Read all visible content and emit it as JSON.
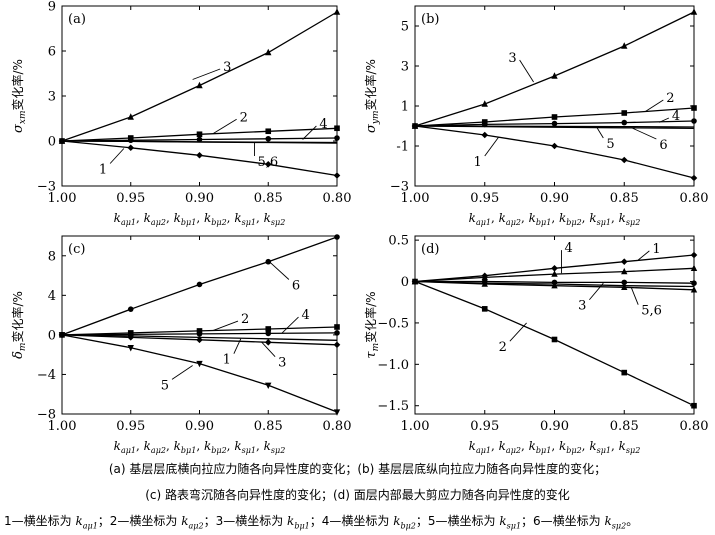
{
  "captions": {
    "line1": "(a) 基层层底横向拉应力随各向异性度的变化；(b) 基层层底纵向拉应力随各向异性度的变化；",
    "line2": "(c) 路表弯沉随各向异性度的变化；(d) 面层内部最大剪应力随各向异性度的变化",
    "legend_prefix": [
      "1—横坐标为 ",
      "；2—横坐标为 ",
      "；3—横坐标为 ",
      "；4—横坐标为 ",
      "；5—横坐标为 ",
      "；6—横坐标为 "
    ],
    "legend_vars": [
      {
        "k": "k",
        "sub": "aμ1"
      },
      {
        "k": "k",
        "sub": "aμ2"
      },
      {
        "k": "k",
        "sub": "bμ1"
      },
      {
        "k": "k",
        "sub": "bμ2"
      },
      {
        "k": "k",
        "sub": "sμ1"
      },
      {
        "k": "k",
        "sub": "sμ2"
      }
    ],
    "legend_end": "。"
  },
  "chart_data": [
    {
      "panel": "(a)",
      "type": "line",
      "ylabel": {
        "base": "σ",
        "sub": "xm",
        "rest": "变化率/%"
      },
      "xlabel": "kaμ1, kaμ2, kbμ1, kbμ2, ksμ1, ksμ2",
      "x": [
        1.0,
        0.95,
        0.9,
        0.85,
        0.8
      ],
      "xticks": [
        "1.00",
        "0.95",
        "0.90",
        "0.85",
        "0.80"
      ],
      "ylim": [
        -3,
        9
      ],
      "yticks": [
        {
          "v": 9,
          "t": "9"
        },
        {
          "v": 6,
          "t": "6"
        },
        {
          "v": 3,
          "t": "3"
        },
        {
          "v": 0,
          "t": "0"
        },
        {
          "v": -3,
          "t": "−3"
        }
      ],
      "series": [
        {
          "label": "3",
          "marker": "triangle",
          "values": [
            0,
            1.6,
            3.7,
            5.9,
            8.6
          ]
        },
        {
          "label": "2",
          "marker": "square",
          "values": [
            0,
            0.2,
            0.45,
            0.65,
            0.85
          ]
        },
        {
          "label": "4",
          "marker": "circle",
          "values": [
            0,
            0.05,
            0.1,
            0.15,
            0.2
          ]
        },
        {
          "label": "5",
          "marker": "none",
          "values": [
            0,
            -0.02,
            -0.05,
            -0.08,
            -0.1
          ]
        },
        {
          "label": "6",
          "marker": "none",
          "values": [
            0,
            -0.03,
            -0.07,
            -0.1,
            -0.14
          ]
        },
        {
          "label": "1",
          "marker": "diamond",
          "values": [
            0,
            -0.45,
            -0.95,
            -1.55,
            -2.3
          ]
        }
      ],
      "labels": [
        {
          "text": "3",
          "ax": 0.905,
          "ay": 4.1,
          "tx": 0.885,
          "ty": 4.8
        },
        {
          "text": "2",
          "ax": 0.89,
          "ay": 0.5,
          "tx": 0.873,
          "ty": 1.45
        },
        {
          "text": "4",
          "ax": 0.825,
          "ay": 0.1,
          "tx": 0.815,
          "ty": 1.0
        },
        {
          "text": "5,6",
          "ax": 0.86,
          "ay": -0.1,
          "tx": 0.86,
          "ty": -1.0
        },
        {
          "text": "1",
          "ax": 0.955,
          "ay": -0.5,
          "tx": 0.965,
          "ty": -1.5
        }
      ]
    },
    {
      "panel": "(b)",
      "type": "line",
      "ylabel": {
        "base": "σ",
        "sub": "ym",
        "rest": "变化率/%"
      },
      "xlabel": "kaμ1, kaμ2, kbμ1, kbμ2, ksμ1, ksμ2",
      "x": [
        1.0,
        0.95,
        0.9,
        0.85,
        0.8
      ],
      "xticks": [
        "1.00",
        "0.95",
        "0.90",
        "0.85",
        "0.80"
      ],
      "ylim": [
        -3,
        6
      ],
      "yticks": [
        {
          "v": 5,
          "t": "5"
        },
        {
          "v": 3,
          "t": "3"
        },
        {
          "v": 1,
          "t": "1"
        },
        {
          "v": -1,
          "t": "-1"
        },
        {
          "v": -3,
          "t": "−3"
        }
      ],
      "series": [
        {
          "label": "3",
          "marker": "triangle",
          "values": [
            0,
            1.1,
            2.5,
            4.0,
            5.7
          ]
        },
        {
          "label": "2",
          "marker": "square",
          "values": [
            0,
            0.2,
            0.45,
            0.65,
            0.9
          ]
        },
        {
          "label": "4",
          "marker": "circle",
          "values": [
            0,
            0.08,
            0.12,
            0.17,
            0.25
          ]
        },
        {
          "label": "5",
          "marker": "none",
          "values": [
            0,
            -0.01,
            -0.02,
            -0.03,
            -0.05
          ]
        },
        {
          "label": "6",
          "marker": "none",
          "values": [
            0,
            -0.03,
            -0.06,
            -0.09,
            -0.12
          ]
        },
        {
          "label": "1",
          "marker": "diamond",
          "values": [
            0,
            -0.45,
            -1.0,
            -1.7,
            -2.6
          ]
        }
      ],
      "labels": [
        {
          "text": "3",
          "ax": 0.915,
          "ay": 2.2,
          "tx": 0.925,
          "ty": 3.3
        },
        {
          "text": "2",
          "ax": 0.835,
          "ay": 0.72,
          "tx": 0.822,
          "ty": 1.3
        },
        {
          "text": "4",
          "ax": 0.825,
          "ay": 0.18,
          "tx": 0.818,
          "ty": 0.4
        },
        {
          "text": "5",
          "ax": 0.87,
          "ay": -0.03,
          "tx": 0.865,
          "ty": -0.6
        },
        {
          "text": "6",
          "ax": 0.845,
          "ay": -0.08,
          "tx": 0.827,
          "ty": -0.65
        },
        {
          "text": "1",
          "ax": 0.94,
          "ay": -0.55,
          "tx": 0.95,
          "ty": -1.5
        }
      ]
    },
    {
      "panel": "(c)",
      "type": "line",
      "ylabel": {
        "base": "δ",
        "sub": "m",
        "rest": "变化率/%"
      },
      "xlabel": "kaμ1, kaμ2, kbμ1, kbμ2, ksμ1, ksμ2",
      "x": [
        1.0,
        0.95,
        0.9,
        0.85,
        0.8
      ],
      "xticks": [
        "1.00",
        "0.95",
        "0.90",
        "0.85",
        "0.80"
      ],
      "ylim": [
        -8,
        10
      ],
      "yticks": [
        {
          "v": 8,
          "t": "8"
        },
        {
          "v": 4,
          "t": "4"
        },
        {
          "v": 0,
          "t": "0"
        },
        {
          "v": -4,
          "t": "−4"
        },
        {
          "v": -8,
          "t": "−8"
        }
      ],
      "series": [
        {
          "label": "6",
          "marker": "circle",
          "values": [
            0,
            2.6,
            5.1,
            7.4,
            9.9
          ]
        },
        {
          "label": "2",
          "marker": "square",
          "values": [
            0,
            0.2,
            0.4,
            0.6,
            0.8
          ]
        },
        {
          "label": "4",
          "marker": "circle",
          "values": [
            0,
            0.05,
            0.1,
            0.15,
            0.2
          ]
        },
        {
          "label": "1",
          "marker": "none",
          "values": [
            0,
            -0.1,
            -0.25,
            -0.4,
            -0.55
          ]
        },
        {
          "label": "3",
          "marker": "diamond",
          "values": [
            0,
            -0.25,
            -0.5,
            -0.75,
            -1.0
          ]
        },
        {
          "label": "5",
          "marker": "triangle-down",
          "values": [
            0,
            -1.3,
            -2.9,
            -5.1,
            -7.8
          ]
        }
      ],
      "labels": [
        {
          "text": "6",
          "ax": 0.85,
          "ay": 7.5,
          "tx": 0.835,
          "ty": 5.6
        },
        {
          "text": "2",
          "ax": 0.89,
          "ay": 0.45,
          "tx": 0.872,
          "ty": 1.4
        },
        {
          "text": "4",
          "ax": 0.84,
          "ay": 0.18,
          "tx": 0.828,
          "ty": 1.8
        },
        {
          "text": "1",
          "ax": 0.87,
          "ay": -0.4,
          "tx": 0.875,
          "ty": -1.9
        },
        {
          "text": "3",
          "ax": 0.855,
          "ay": -0.7,
          "tx": 0.845,
          "ty": -2.2
        },
        {
          "text": "5",
          "ax": 0.905,
          "ay": -3.1,
          "tx": 0.92,
          "ty": -4.5
        }
      ]
    },
    {
      "panel": "(d)",
      "type": "line",
      "ylabel": {
        "base": "τ",
        "sub": "m",
        "rest": "变化率/%"
      },
      "xlabel": "kaμ1, kaμ2, kbμ1, kbμ2, ksμ1, ksμ2",
      "x": [
        1.0,
        0.95,
        0.9,
        0.85,
        0.8
      ],
      "xticks": [
        "1.00",
        "0.95",
        "0.90",
        "0.85",
        "0.80"
      ],
      "ylim": [
        -1.6,
        0.55
      ],
      "yticks": [
        {
          "v": 0.5,
          "t": "0.5"
        },
        {
          "v": 0,
          "t": "0"
        },
        {
          "v": -0.5,
          "t": "−0.5"
        },
        {
          "v": -1.0,
          "t": "−1.0"
        },
        {
          "v": -1.5,
          "t": "−1.5"
        }
      ],
      "series": [
        {
          "label": "1",
          "marker": "diamond",
          "values": [
            0,
            0.07,
            0.16,
            0.24,
            0.32
          ]
        },
        {
          "label": "4",
          "marker": "triangle",
          "values": [
            0,
            0.05,
            0.09,
            0.12,
            0.16
          ]
        },
        {
          "label": "3",
          "marker": "circle",
          "values": [
            0,
            0.0,
            -0.01,
            -0.01,
            -0.02
          ]
        },
        {
          "label": "5",
          "marker": "none",
          "values": [
            0,
            -0.02,
            -0.03,
            -0.05,
            -0.06
          ]
        },
        {
          "label": "6",
          "marker": "triangle",
          "values": [
            0,
            -0.03,
            -0.05,
            -0.07,
            -0.1
          ]
        },
        {
          "label": "2",
          "marker": "square",
          "values": [
            0,
            -0.33,
            -0.7,
            -1.1,
            -1.5
          ]
        }
      ],
      "labels": [
        {
          "text": "1",
          "ax": 0.84,
          "ay": 0.26,
          "tx": 0.832,
          "ty": 0.37
        },
        {
          "text": "4",
          "ax": 0.895,
          "ay": 0.1,
          "tx": 0.895,
          "ty": 0.38
        },
        {
          "text": "3",
          "ax": 0.865,
          "ay": -0.02,
          "tx": 0.875,
          "ty": -0.22
        },
        {
          "text": "5,6",
          "ax": 0.845,
          "ay": -0.07,
          "tx": 0.84,
          "ty": -0.28
        },
        {
          "text": "2",
          "ax": 0.92,
          "ay": -0.5,
          "tx": 0.932,
          "ty": -0.72
        }
      ]
    }
  ]
}
